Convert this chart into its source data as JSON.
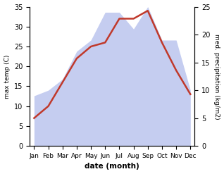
{
  "months": [
    "Jan",
    "Feb",
    "Mar",
    "Apr",
    "May",
    "Jun",
    "Jul",
    "Aug",
    "Sep",
    "Oct",
    "Nov",
    "Dec"
  ],
  "temp": [
    7,
    10,
    16,
    22,
    25,
    26,
    32,
    32,
    34,
    26,
    19,
    13
  ],
  "precip": [
    9,
    10,
    12,
    17,
    19,
    24,
    24,
    21,
    25,
    19,
    19,
    10
  ],
  "temp_ylim": [
    0,
    35
  ],
  "precip_ylim": [
    0,
    25
  ],
  "temp_color": "#c0392b",
  "precip_fill_color": "#c5cdf0",
  "xlabel": "date (month)",
  "ylabel_left": "max temp (C)",
  "ylabel_right": "med. precipitation (kg/m2)",
  "fig_width": 3.18,
  "fig_height": 2.47,
  "dpi": 100
}
